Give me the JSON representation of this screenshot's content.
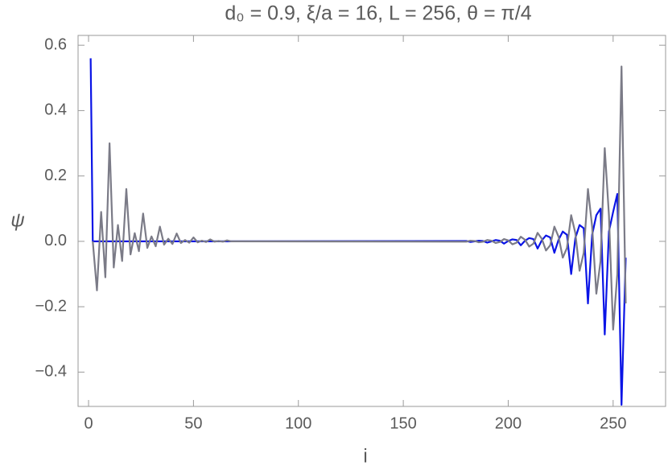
{
  "chart_data": {
    "type": "line",
    "title": "d₀ =  0.9, ξ/a = 16, L = 256, θ = π/4",
    "x_label": "i",
    "y_label": "ψ",
    "x": [
      1,
      2,
      4,
      6,
      8,
      10,
      12,
      14,
      16,
      18,
      20,
      22,
      24,
      26,
      28,
      30,
      32,
      34,
      36,
      38,
      40,
      42,
      44,
      46,
      48,
      50,
      52,
      54,
      56,
      58,
      60,
      62,
      64,
      66,
      68,
      70,
      180,
      182,
      184,
      186,
      188,
      190,
      192,
      194,
      196,
      198,
      200,
      202,
      204,
      206,
      208,
      210,
      212,
      214,
      216,
      218,
      220,
      222,
      224,
      226,
      228,
      230,
      232,
      234,
      236,
      238,
      240,
      242,
      244,
      246,
      248,
      250,
      252,
      254,
      256
    ],
    "series": [
      {
        "name": "blue",
        "color": "#0a14e6",
        "values": [
          0.56,
          0,
          0,
          0,
          0,
          0,
          0,
          0,
          0,
          0,
          0,
          0,
          0,
          0,
          0,
          0,
          0,
          0,
          0,
          0,
          0,
          0,
          0,
          0,
          0,
          0,
          0,
          0,
          0,
          0,
          0,
          0,
          0,
          0,
          0,
          0,
          0.001,
          -0.002,
          0,
          0.002,
          0.001,
          -0.004,
          0,
          0.004,
          0.002,
          -0.007,
          0.001,
          0.006,
          0.004,
          -0.012,
          0.002,
          0.01,
          0.007,
          -0.022,
          0.003,
          0.018,
          0.012,
          -0.035,
          0.005,
          0.03,
          0.02,
          -0.1,
          0.01,
          0.05,
          0.04,
          -0.19,
          0.02,
          0.08,
          0.1,
          -0.285,
          0.03,
          0.09,
          0.145,
          -0.5,
          -0.05
        ]
      },
      {
        "name": "gray",
        "color": "#7b7b87",
        "values": [
          null,
          0,
          -0.15,
          0.09,
          -0.11,
          0.3,
          -0.08,
          0.05,
          -0.06,
          0.16,
          -0.04,
          0.025,
          -0.03,
          0.085,
          -0.02,
          0.015,
          -0.015,
          0.045,
          -0.01,
          0.008,
          -0.008,
          0.024,
          -0.005,
          0.004,
          -0.004,
          0.012,
          -0.003,
          0.002,
          -0.002,
          0.006,
          -0.001,
          0.001,
          -0.001,
          0.003,
          0,
          0,
          -0.001,
          0.002,
          0.001,
          -0.003,
          -0.001,
          0.004,
          0.002,
          -0.005,
          -0.002,
          0.007,
          0.003,
          -0.009,
          -0.004,
          0.014,
          0.005,
          -0.016,
          -0.007,
          0.026,
          0.008,
          -0.028,
          -0.012,
          0.045,
          0.014,
          -0.05,
          -0.02,
          0.08,
          0.025,
          -0.09,
          -0.035,
          0.16,
          0.045,
          -0.16,
          -0.06,
          0.285,
          0.08,
          -0.27,
          -0.1,
          0.535,
          -0.19
        ]
      }
    ],
    "xlim": [
      -5,
      275
    ],
    "ylim": [
      -0.505,
      0.63
    ],
    "xticks": [
      0,
      50,
      100,
      150,
      200,
      250
    ],
    "yticks": [
      {
        "value": -0.4,
        "label": "−0.4"
      },
      {
        "value": -0.2,
        "label": "−0.2"
      },
      {
        "value": 0,
        "label": "0.0"
      },
      0.2,
      0.4,
      0.6
    ],
    "grid": false
  }
}
